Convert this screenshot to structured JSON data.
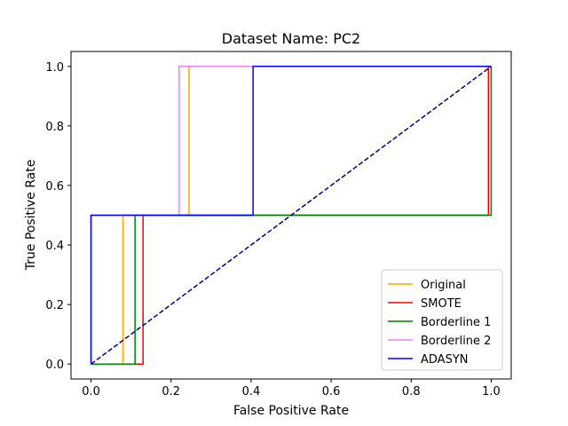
{
  "chart_data": {
    "type": "line",
    "title": "Dataset Name: PC2",
    "xlabel": "False Positive Rate",
    "ylabel": "True Positive Rate",
    "xlim": [
      -0.05,
      1.05
    ],
    "ylim": [
      -0.05,
      1.05
    ],
    "xticks": [
      0.0,
      0.2,
      0.4,
      0.6,
      0.8,
      1.0
    ],
    "yticks": [
      0.0,
      0.2,
      0.4,
      0.6,
      0.8,
      1.0
    ],
    "xtick_labels": [
      "0.0",
      "0.2",
      "0.4",
      "0.6",
      "0.8",
      "1.0"
    ],
    "ytick_labels": [
      "0.0",
      "0.2",
      "0.4",
      "0.6",
      "0.8",
      "1.0"
    ],
    "grid": false,
    "legend_position": "lower-right",
    "series": [
      {
        "name": "Original",
        "color": "#ffa500",
        "x": [
          0.0,
          0.08,
          0.08,
          0.245,
          0.245,
          1.0
        ],
        "y": [
          0.0,
          0.0,
          0.5,
          0.5,
          1.0,
          1.0
        ]
      },
      {
        "name": "SMOTE",
        "color": "#ff0000",
        "x": [
          0.0,
          0.13,
          0.13,
          0.993,
          0.993,
          1.0
        ],
        "y": [
          0.0,
          0.0,
          0.5,
          0.5,
          1.0,
          1.0
        ]
      },
      {
        "name": "Borderline 1",
        "color": "#008000",
        "x": [
          0.0,
          0.11,
          0.11,
          1.0,
          1.0
        ],
        "y": [
          0.0,
          0.0,
          0.5,
          0.5,
          1.0
        ]
      },
      {
        "name": "Borderline 2",
        "color": "#ee82ee",
        "x": [
          0.0,
          0.0,
          0.22,
          0.22,
          1.0
        ],
        "y": [
          0.0,
          0.5,
          0.5,
          1.0,
          1.0
        ]
      },
      {
        "name": "ADASYN",
        "color": "#0000ff",
        "x": [
          0.0,
          0.0,
          0.405,
          0.405,
          1.0
        ],
        "y": [
          0.0,
          0.5,
          0.5,
          1.0,
          1.0
        ]
      }
    ],
    "reference_line": {
      "color": "#000080",
      "style": "dashed",
      "x": [
        0.0,
        1.0
      ],
      "y": [
        0.0,
        1.0
      ]
    }
  }
}
